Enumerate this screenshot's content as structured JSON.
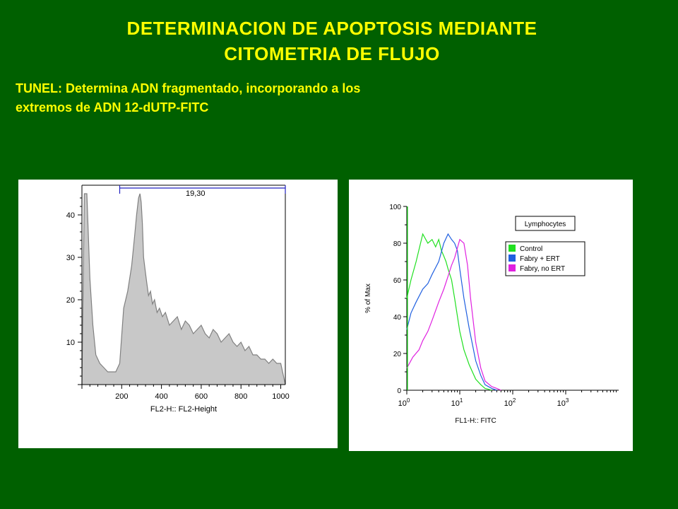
{
  "slide": {
    "title_line1": "DETERMINACION  DE APOPTOSIS  MEDIANTE",
    "title_line2": "CITOMETRIA DE FLUJO",
    "subtitle_line1": "TUNEL: Determina ADN fragmentado, incorporando a los",
    "subtitle_line2": "extremos de ADN 12-dUTP-FITC"
  },
  "chart_data": [
    {
      "type": "area",
      "xlabel": "FL2-H:: FL2-Height",
      "ylabel": "",
      "xlim": [
        0,
        1023
      ],
      "ylim": [
        0,
        47
      ],
      "x_ticks": [
        200,
        400,
        600,
        800,
        1000
      ],
      "y_ticks": [
        10,
        20,
        30,
        40
      ],
      "fill_color": "#c8c8c8",
      "line_color": "#808080",
      "gate": {
        "label": "19,30",
        "x_start": 190,
        "x_end": 1023,
        "color": "#2020c0"
      },
      "series": [
        {
          "x": [
            0,
            12,
            25,
            40,
            55,
            70,
            90,
            110,
            130,
            150,
            170,
            190,
            210,
            230,
            250,
            265,
            275,
            285,
            292,
            298,
            304,
            310,
            318,
            326,
            335,
            345,
            355,
            365,
            378,
            390,
            405,
            420,
            440,
            460,
            480,
            500,
            520,
            540,
            560,
            580,
            600,
            620,
            640,
            660,
            680,
            700,
            720,
            740,
            760,
            780,
            800,
            820,
            840,
            860,
            880,
            900,
            920,
            940,
            960,
            980,
            1000,
            1023
          ],
          "y": [
            0,
            45,
            45,
            25,
            14,
            7,
            5,
            4,
            3,
            3,
            3,
            5,
            18,
            22,
            28,
            35,
            40,
            44,
            45,
            43,
            38,
            30,
            27,
            24,
            21,
            22,
            19,
            20,
            17,
            18,
            16,
            17,
            14,
            15,
            16,
            13,
            15,
            14,
            12,
            13,
            14,
            12,
            11,
            13,
            12,
            10,
            11,
            12,
            10,
            9,
            10,
            8,
            9,
            7,
            7,
            6,
            6,
            5,
            6,
            5,
            5,
            0
          ]
        }
      ]
    },
    {
      "type": "line",
      "xlabel": "FL1-H:: FITC",
      "ylabel": "% of Max",
      "x_scale": "log",
      "xlim": [
        1,
        10000
      ],
      "ylim": [
        0,
        100
      ],
      "x_ticks": [
        "10^0",
        "10^1",
        "10^2",
        "10^3"
      ],
      "y_ticks": [
        0,
        20,
        40,
        60,
        80,
        100
      ],
      "legend_position": "top-right",
      "legend_title": "Lymphocytes",
      "series": [
        {
          "name": "Control",
          "color": "#20e020",
          "x": [
            1,
            1.2,
            1.5,
            2,
            2.5,
            3,
            3.5,
            4,
            4.5,
            5,
            5.5,
            6,
            7,
            8,
            10,
            12,
            15,
            20,
            25,
            30,
            35,
            40
          ],
          "y": [
            50,
            60,
            70,
            85,
            80,
            82,
            78,
            82,
            76,
            73,
            70,
            66,
            60,
            50,
            32,
            22,
            14,
            6,
            3,
            1,
            0.5,
            0
          ]
        },
        {
          "name": "Fabry + ERT",
          "color": "#2060e0",
          "x": [
            1,
            1.2,
            1.5,
            2,
            2.5,
            3,
            4,
            5,
            6,
            7,
            8,
            9,
            10,
            12,
            15,
            20,
            25,
            30,
            40,
            50
          ],
          "y": [
            33,
            42,
            48,
            55,
            58,
            63,
            70,
            80,
            85,
            82,
            80,
            76,
            66,
            50,
            34,
            16,
            8,
            3,
            1,
            0
          ]
        },
        {
          "name": "Fabry, no ERT",
          "color": "#e020e0",
          "x": [
            1,
            1.3,
            1.7,
            2,
            2.5,
            3,
            4,
            5,
            6,
            7,
            8,
            10,
            12,
            14,
            16,
            20,
            25,
            30,
            40,
            50,
            60
          ],
          "y": [
            12,
            18,
            22,
            27,
            32,
            38,
            48,
            55,
            62,
            68,
            72,
            82,
            80,
            68,
            50,
            26,
            12,
            5,
            2,
            1,
            0
          ]
        }
      ]
    }
  ]
}
